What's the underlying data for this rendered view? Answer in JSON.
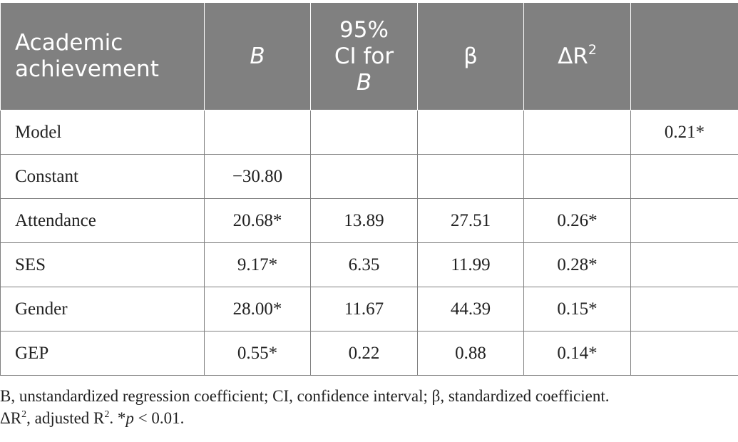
{
  "table": {
    "header": {
      "col0": "Academic achievement",
      "col1": "B",
      "col2_line1": "95%",
      "col2_line2": "CI for",
      "col2_line3": "B",
      "col3": "β",
      "col4_base": "ΔR",
      "col4_sup": "2",
      "col5": ""
    },
    "rows": [
      {
        "label": "Model",
        "b": "",
        "ci_low": "",
        "ci_high": "",
        "delta_r2": "",
        "r2": "0.21*"
      },
      {
        "label": "Constant",
        "b": "−30.80",
        "ci_low": "",
        "ci_high": "",
        "delta_r2": "",
        "r2": ""
      },
      {
        "label": "Attendance",
        "b": "20.68*",
        "ci_low": "13.89",
        "ci_high": "27.51",
        "delta_r2": "0.26*",
        "r2": ""
      },
      {
        "label": "SES",
        "b": "9.17*",
        "ci_low": "6.35",
        "ci_high": "11.99",
        "delta_r2": "0.28*",
        "r2": ""
      },
      {
        "label": "Gender",
        "b": "28.00*",
        "ci_low": "11.67",
        "ci_high": "44.39",
        "delta_r2": "0.15*",
        "r2": ""
      },
      {
        "label": "GEP",
        "b": "0.55*",
        "ci_low": "0.22",
        "ci_high": "0.88",
        "delta_r2": "0.14*",
        "r2": ""
      }
    ]
  },
  "note": {
    "line1": "B, unstandardized regression coefficient; CI, confidence interval; β, standardized coefficient.",
    "line2_a": "ΔR",
    "line2_sup1": "2",
    "line2_b": ", adjusted R",
    "line2_sup2": "2",
    "line2_c": ". *",
    "line2_p": "p",
    "line2_d": " < 0.01."
  }
}
